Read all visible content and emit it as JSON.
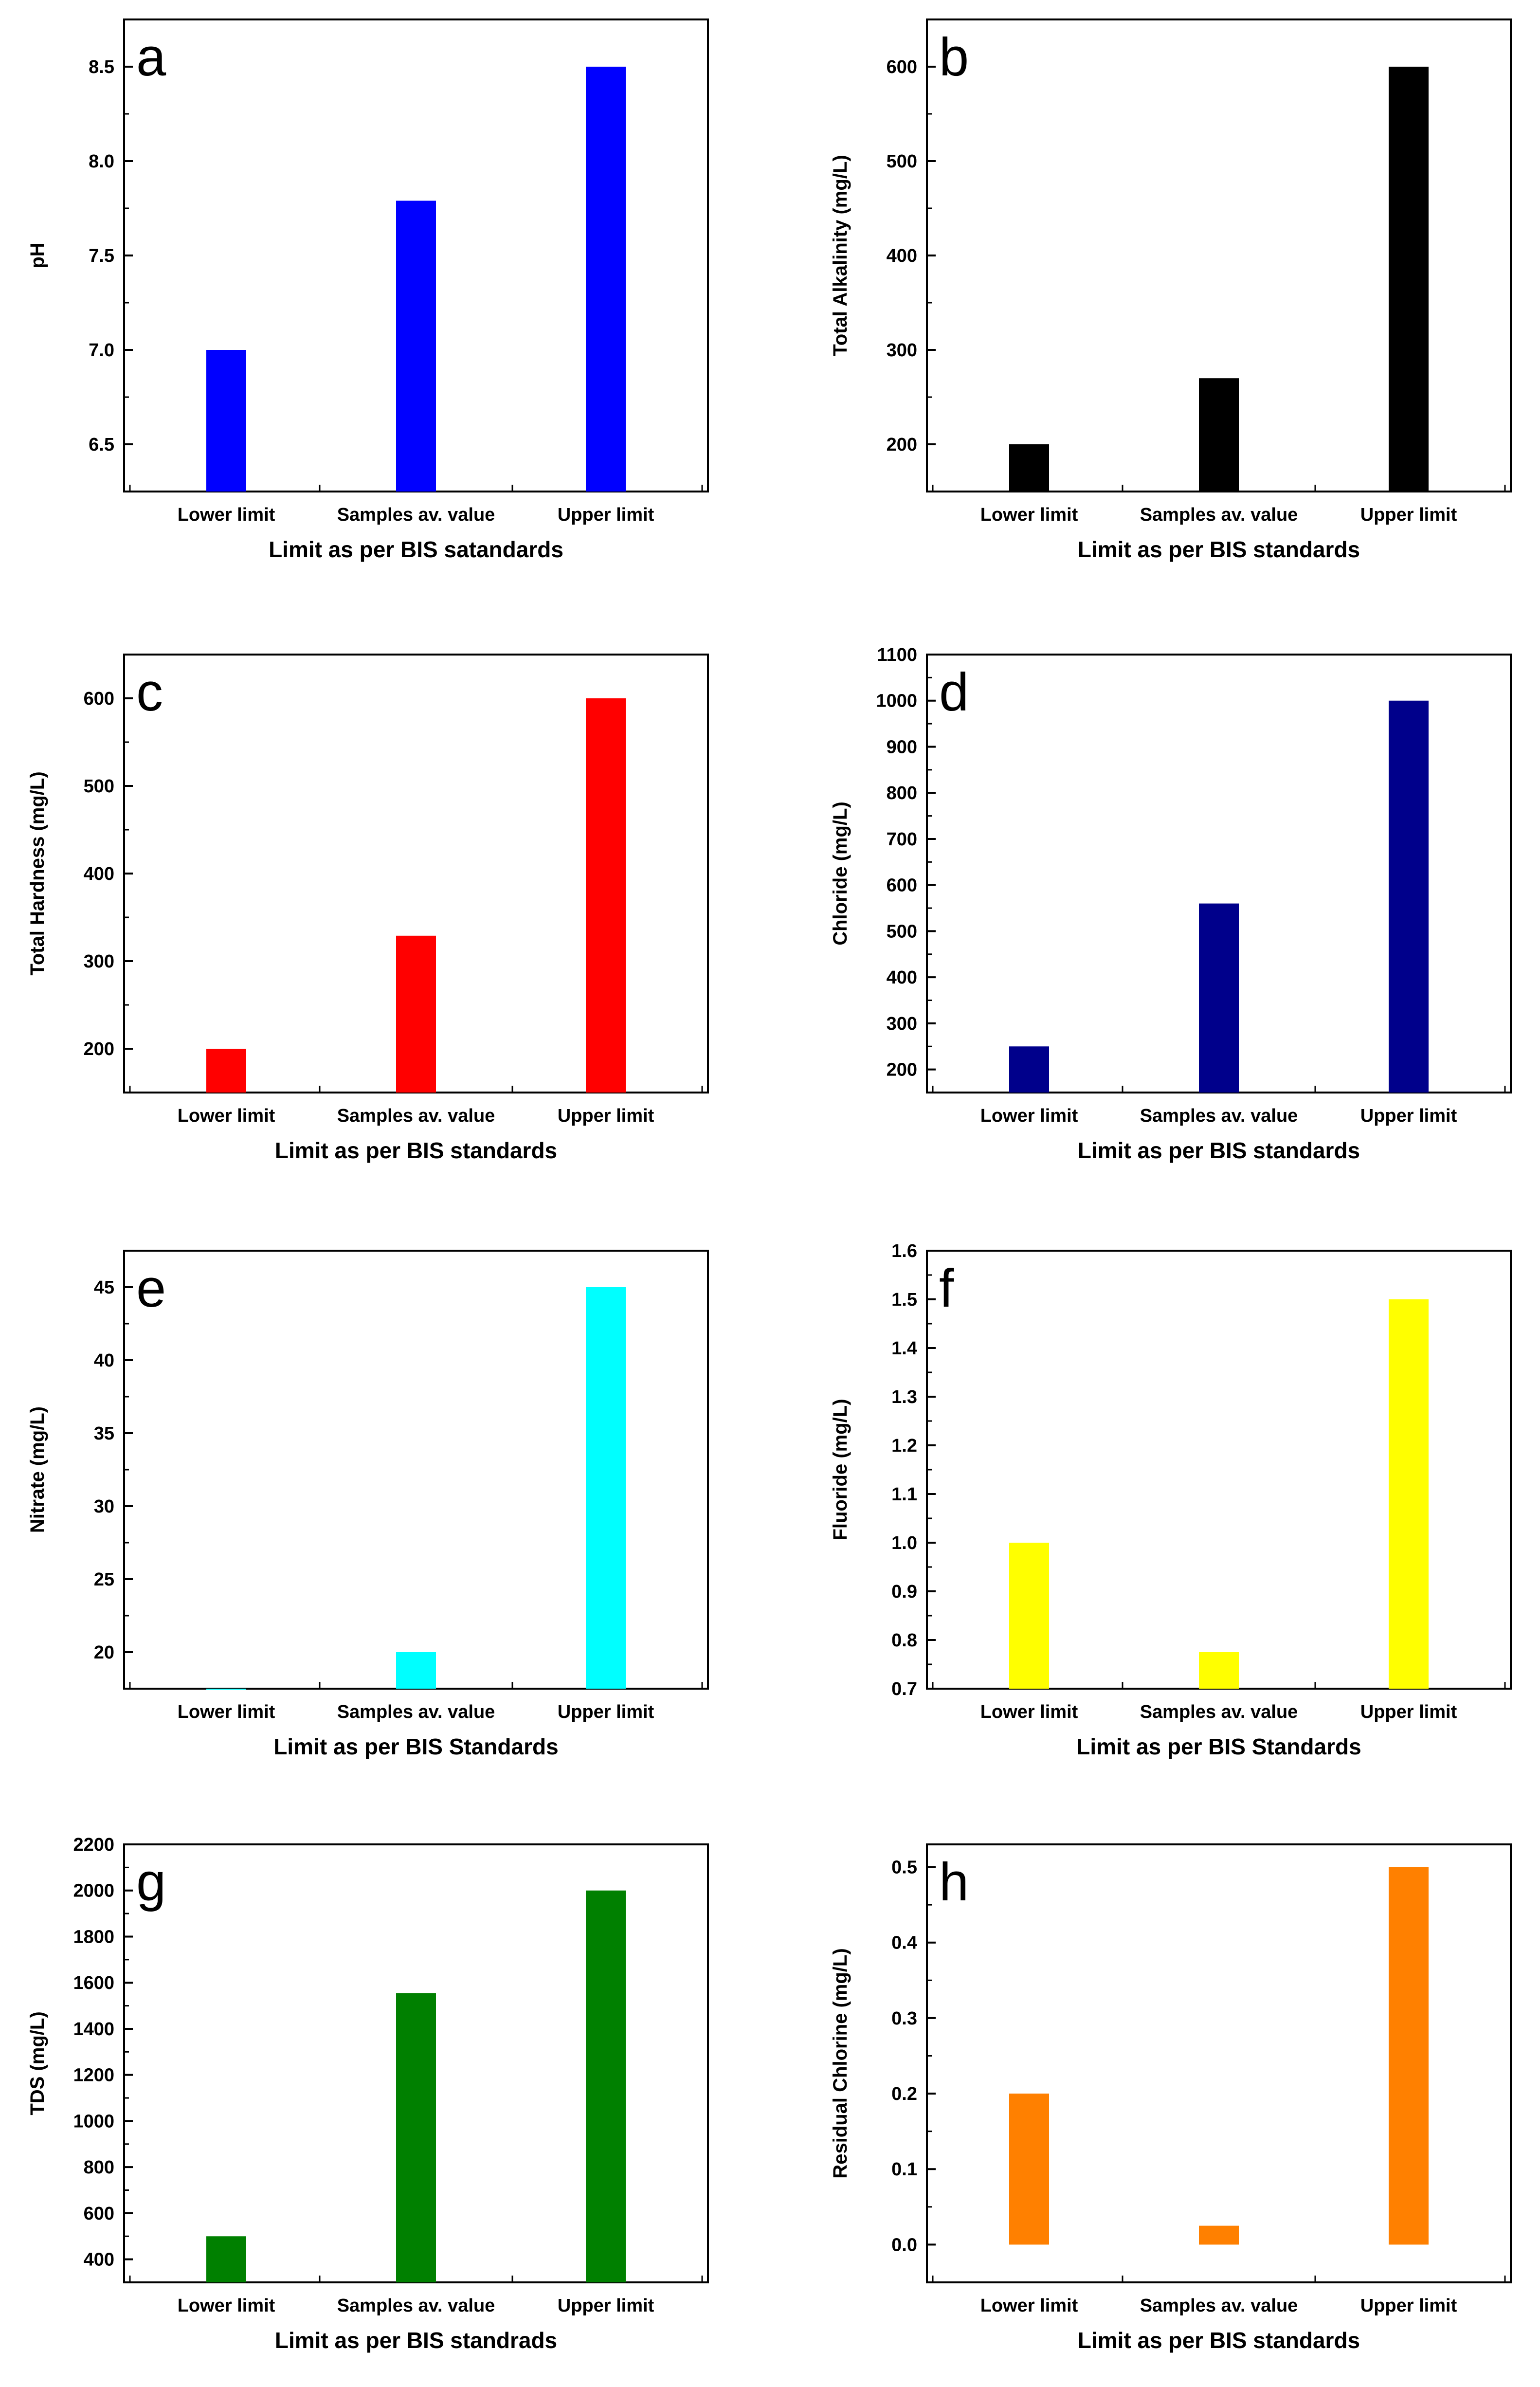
{
  "chart_data": [
    {
      "panel": "a",
      "type": "bar",
      "categories": [
        "Lower limit",
        "Samples av. value",
        "Upper limit"
      ],
      "values": [
        7.0,
        7.79,
        8.5
      ],
      "color": "#0000ff",
      "xlabel": "Limit as per BIS satandards",
      "ylabel": "pH",
      "ylim": [
        6.25,
        8.75
      ],
      "yticks": [
        "6.5",
        "7.0",
        "7.5",
        "8.0",
        "8.5"
      ]
    },
    {
      "panel": "b",
      "type": "bar",
      "categories": [
        "Lower limit",
        "Samples av. value",
        "Upper limit"
      ],
      "values": [
        200,
        270,
        600
      ],
      "color": "#000000",
      "xlabel": "Limit as per BIS standards",
      "ylabel": "Total Alkalinity (mg/L)",
      "ylim": [
        150,
        650
      ],
      "yticks": [
        "200",
        "300",
        "400",
        "500",
        "600"
      ]
    },
    {
      "panel": "c",
      "type": "bar",
      "categories": [
        "Lower limit",
        "Samples av. value",
        "Upper limit"
      ],
      "values": [
        200,
        329,
        600
      ],
      "color": "#ff0000",
      "xlabel": "Limit as per BIS standards",
      "ylabel": "Total Hardness (mg/L)",
      "ylim": [
        150,
        650
      ],
      "yticks": [
        "200",
        "300",
        "400",
        "500",
        "600"
      ]
    },
    {
      "panel": "d",
      "type": "bar",
      "categories": [
        "Lower limit",
        "Samples av. value",
        "Upper limit"
      ],
      "values": [
        250,
        560,
        1000
      ],
      "color": "#00008b",
      "xlabel": "Limit as per BIS standards",
      "ylabel": "Chloride (mg/L)",
      "ylim": [
        150,
        1100
      ],
      "yticks": [
        "200",
        "300",
        "400",
        "500",
        "600",
        "700",
        "800",
        "900",
        "1000",
        "1100"
      ]
    },
    {
      "panel": "e",
      "type": "bar",
      "categories": [
        "Lower limit",
        "Samples av. value",
        "Upper limit"
      ],
      "values": [
        17.5,
        20,
        45
      ],
      "color": "#00ffff",
      "xlabel": "Limit as per BIS Standards",
      "ylabel": "Nitrate (mg/L)",
      "ylim": [
        17.5,
        47.5
      ],
      "yticks": [
        "20",
        "25",
        "30",
        "35",
        "40",
        "45"
      ]
    },
    {
      "panel": "f",
      "type": "bar",
      "categories": [
        "Lower limit",
        "Samples av. value",
        "Upper limit"
      ],
      "values": [
        1.0,
        0.775,
        1.5
      ],
      "color": "#ffff00",
      "xlabel": "Limit as per BIS Standards",
      "ylabel": "Fluoride (mg/L)",
      "ylim": [
        0.7,
        1.6
      ],
      "yticks": [
        "0.7",
        "0.8",
        "0.9",
        "1.0",
        "1.1",
        "1.2",
        "1.3",
        "1.4",
        "1.5",
        "1.6"
      ]
    },
    {
      "panel": "g",
      "type": "bar",
      "categories": [
        "Lower limit",
        "Samples av. value",
        "Upper limit"
      ],
      "values": [
        500,
        1555,
        2000
      ],
      "color": "#008000",
      "xlabel": "Limit as per BIS standrads",
      "ylabel": "TDS (mg/L)",
      "ylim": [
        300,
        2200
      ],
      "yticks": [
        "400",
        "600",
        "800",
        "1000",
        "1200",
        "1400",
        "1600",
        "1800",
        "2000",
        "2200"
      ]
    },
    {
      "panel": "h",
      "type": "bar",
      "categories": [
        "Lower limit",
        "Samples av. value",
        "Upper limit"
      ],
      "values": [
        0.2,
        0.025,
        0.5
      ],
      "color": "#ff8000",
      "xlabel": "Limit as per BIS standards",
      "ylabel": "Residual Chlorine  (mg/L)",
      "ylim": [
        -0.05,
        0.53
      ],
      "yticks": [
        "0.0",
        "0.1",
        "0.2",
        "0.3",
        "0.4",
        "0.5"
      ]
    }
  ]
}
